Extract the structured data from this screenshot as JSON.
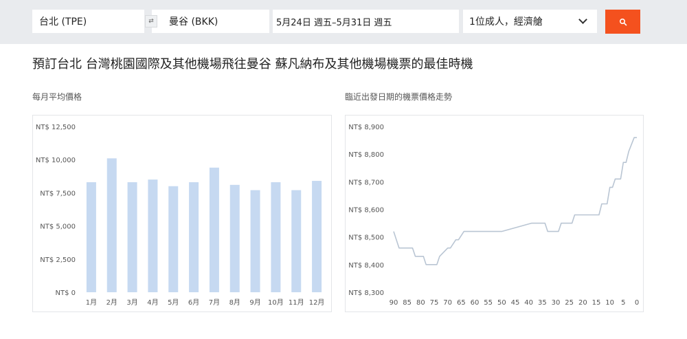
{
  "search": {
    "origin": "台北 (TPE)",
    "swap_icon": "⇄",
    "destination": "曼谷 (BKK)",
    "dates": "5月24日 週五–5月31日 週五",
    "passengers": "1位成人，經濟艙",
    "search_icon": "search-icon"
  },
  "page_title": "預訂台北 台灣桃園國際及其他機場飛往曼谷 蘇凡納布及其他機場機票的最佳時機",
  "colors": {
    "bar": "#c6d9f1",
    "line": "#b9c5d3",
    "accent": "#f4511e",
    "grid": "#eeeeee",
    "tick": "#555555"
  },
  "chart_data": [
    {
      "type": "bar",
      "title": "每月平均價格",
      "categories": [
        "1月",
        "2月",
        "3月",
        "4月",
        "5月",
        "6月",
        "7月",
        "8月",
        "9月",
        "10月",
        "11月",
        "12月"
      ],
      "values": [
        8300,
        10100,
        8300,
        8500,
        8000,
        8300,
        9400,
        8100,
        7700,
        8300,
        7700,
        8400
      ],
      "ylim": [
        0,
        12500
      ],
      "yticks": [
        0,
        2500,
        5000,
        7500,
        10000,
        12500
      ],
      "ytick_labels": [
        "NT$ 0",
        "NT$ 2,500",
        "NT$ 5,000",
        "NT$ 7,500",
        "NT$ 10,000",
        "NT$ 12,500"
      ],
      "grid": false
    },
    {
      "type": "line",
      "title": "臨近出發日期的機票價格走勢",
      "x_reversed": true,
      "xlim": [
        90,
        0
      ],
      "xticks": [
        90,
        85,
        80,
        75,
        70,
        65,
        60,
        55,
        50,
        45,
        40,
        35,
        30,
        25,
        20,
        15,
        10,
        5,
        0
      ],
      "ylim": [
        8300,
        8900
      ],
      "yticks": [
        8300,
        8400,
        8500,
        8600,
        8700,
        8800,
        8900
      ],
      "ytick_labels": [
        "NT$ 8,300",
        "NT$ 8,400",
        "NT$ 8,500",
        "NT$ 8,600",
        "NT$ 8,700",
        "NT$ 8,800",
        "NT$ 8,900"
      ],
      "grid": false,
      "series": [
        {
          "x": [
            90,
            88,
            87,
            83,
            82,
            79,
            78,
            74,
            73,
            70,
            69,
            67,
            66,
            64,
            63,
            51,
            50,
            39,
            38,
            34,
            33,
            29,
            28,
            24,
            23,
            14,
            13,
            11,
            10,
            9,
            8,
            6,
            5,
            4,
            3,
            1,
            0
          ],
          "y": [
            8520,
            8460,
            8460,
            8460,
            8430,
            8430,
            8400,
            8400,
            8430,
            8460,
            8460,
            8490,
            8490,
            8520,
            8520,
            8520,
            8520,
            8550,
            8550,
            8550,
            8520,
            8520,
            8550,
            8550,
            8580,
            8580,
            8620,
            8620,
            8680,
            8680,
            8710,
            8710,
            8770,
            8770,
            8810,
            8860,
            8860
          ]
        }
      ]
    }
  ]
}
